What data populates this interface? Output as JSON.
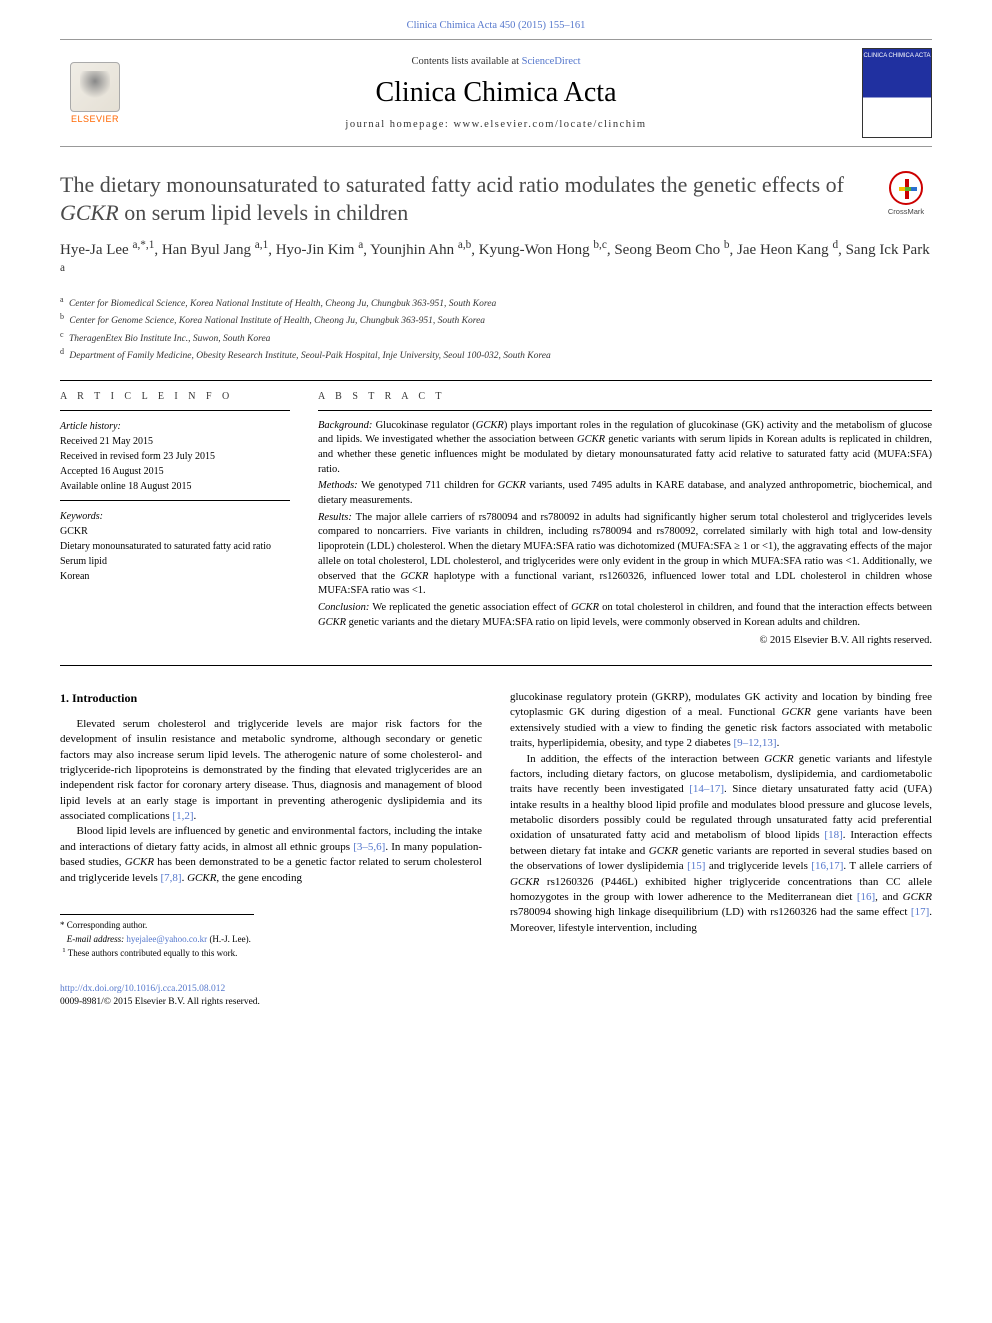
{
  "journal_ref": "Clinica Chimica Acta 450 (2015) 155–161",
  "banner": {
    "contents_pre": "Contents lists available at ",
    "contents_link": "ScienceDirect",
    "journal_title": "Clinica Chimica Acta",
    "homepage_label": "journal homepage: ",
    "homepage_url": "www.elsevier.com/locate/clinchim",
    "publisher": "ELSEVIER",
    "cover_text": "CLINICA CHIMICA ACTA"
  },
  "crossmark": "CrossMark",
  "title_pre": "The dietary monounsaturated to saturated fatty acid ratio modulates the genetic effects of ",
  "title_gene": "GCKR",
  "title_post": " on serum lipid levels in children",
  "authors_html": "Hye-Ja Lee <sup>a,*,1</sup>, Han Byul Jang <sup>a,1</sup>, Hyo-Jin Kim <sup>a</sup>, Younjhin Ahn <sup>a,b</sup>, Kyung-Won Hong <sup>b,c</sup>, Seong Beom Cho <sup>b</sup>, Jae Heon Kang <sup>d</sup>, Sang Ick Park <sup>a</sup>",
  "affiliations": [
    {
      "sup": "a",
      "text": "Center for Biomedical Science, Korea National Institute of Health, Cheong Ju, Chungbuk 363-951, South Korea"
    },
    {
      "sup": "b",
      "text": "Center for Genome Science, Korea National Institute of Health, Cheong Ju, Chungbuk 363-951, South Korea"
    },
    {
      "sup": "c",
      "text": "TheragenEtex Bio Institute Inc., Suwon, South Korea"
    },
    {
      "sup": "d",
      "text": "Department of Family Medicine, Obesity Research Institute, Seoul-Paik Hospital, Inje University, Seoul 100-032, South Korea"
    }
  ],
  "info": {
    "section_label": "A R T I C L E   I N F O",
    "history_label": "Article history:",
    "history": [
      "Received 21 May 2015",
      "Received in revised form 23 July 2015",
      "Accepted 16 August 2015",
      "Available online 18 August 2015"
    ],
    "keywords_label": "Keywords:",
    "keywords": [
      "GCKR",
      "Dietary monounsaturated to saturated fatty acid ratio",
      "Serum lipid",
      "Korean"
    ]
  },
  "abstract": {
    "section_label": "A B S T R A C T",
    "background": "Glucokinase regulator (<span class=\"gene\">GCKR</span>) plays important roles in the regulation of glucokinase (GK) activity and the metabolism of glucose and lipids. We investigated whether the association between <span class=\"gene\">GCKR</span> genetic variants with serum lipids in Korean adults is replicated in children, and whether these genetic influences might be modulated by dietary monounsaturated fatty acid relative to saturated fatty acid (MUFA:SFA) ratio.",
    "methods": "We genotyped 711 children for <span class=\"gene\">GCKR</span> variants, used 7495 adults in KARE database, and analyzed anthropometric, biochemical, and dietary measurements.",
    "results": "The major allele carriers of rs780094 and rs780092 in adults had significantly higher serum total cholesterol and triglycerides levels compared to noncarriers. Five variants in children, including rs780094 and rs780092, correlated similarly with high total and low-density lipoprotein (LDL) cholesterol. When the dietary MUFA:SFA ratio was dichotomized (MUFA:SFA ≥ 1 or <1), the aggravating effects of the major allele on total cholesterol, LDL cholesterol, and triglycerides were only evident in the group in which MUFA:SFA ratio was <1. Additionally, we observed that the <span class=\"gene\">GCKR</span> haplotype with a functional variant, rs1260326, influenced lower total and LDL cholesterol in children whose MUFA:SFA ratio was <1.",
    "conclusion": "We replicated the genetic association effect of <span class=\"gene\">GCKR</span> on total cholesterol in children, and found that the interaction effects between <span class=\"gene\">GCKR</span> genetic variants and the dietary MUFA:SFA ratio on lipid levels, were commonly observed in Korean adults and children.",
    "copyright": "© 2015 Elsevier B.V. All rights reserved."
  },
  "intro": {
    "heading": "1. Introduction",
    "p1": "Elevated serum cholesterol and triglyceride levels are major risk factors for the development of insulin resistance and metabolic syndrome, although secondary or genetic factors may also increase serum lipid levels. The atherogenic nature of some cholesterol- and triglyceride-rich lipoproteins is demonstrated by the finding that elevated triglycerides are an independent risk factor for coronary artery disease. Thus, diagnosis and management of blood lipid levels at an early stage is important in preventing atherogenic dyslipidemia and its associated complications <a class=\"ref\" href=\"#\">[1,2]</a>.",
    "p2": "Blood lipid levels are influenced by genetic and environmental factors, including the intake and interactions of dietary fatty acids, in almost all ethnic groups <a class=\"ref\" href=\"#\">[3–5,6]</a>. In many population-based studies, <span class=\"gene\">GCKR</span> has been demonstrated to be a genetic factor related to serum cholesterol and triglyceride levels <a class=\"ref\" href=\"#\">[7,8]</a>. <span class=\"gene\">GCKR</span>, the gene encoding",
    "p3": "glucokinase regulatory protein (GKRP), modulates GK activity and location by binding free cytoplasmic GK during digestion of a meal. Functional <span class=\"gene\">GCKR</span> gene variants have been extensively studied with a view to finding the genetic risk factors associated with metabolic traits, hyperlipidemia, obesity, and type 2 diabetes <a class=\"ref\" href=\"#\">[9–12,13]</a>.",
    "p4": "In addition, the effects of the interaction between <span class=\"gene\">GCKR</span> genetic variants and lifestyle factors, including dietary factors, on glucose metabolism, dyslipidemia, and cardiometabolic traits have recently been investigated <a class=\"ref\" href=\"#\">[14–17]</a>. Since dietary unsaturated fatty acid (UFA) intake results in a healthy blood lipid profile and modulates blood pressure and glucose levels, metabolic disorders possibly could be regulated through unsaturated fatty acid preferential oxidation of unsaturated fatty acid and metabolism of blood lipids <a class=\"ref\" href=\"#\">[18]</a>. Interaction effects between dietary fat intake and <span class=\"gene\">GCKR</span> genetic variants are reported in several studies based on the observations of lower dyslipidemia <a class=\"ref\" href=\"#\">[15]</a> and triglyceride levels <a class=\"ref\" href=\"#\">[16,17]</a>. T allele carriers of <span class=\"gene\">GCKR</span> rs1260326 (P446L) exhibited higher triglyceride concentrations than CC allele homozygotes in the group with lower adherence to the Mediterranean diet <a class=\"ref\" href=\"#\">[16]</a>, and <span class=\"gene\">GCKR</span> rs780094 showing high linkage disequilibrium (LD) with rs1260326 had the same effect <a class=\"ref\" href=\"#\">[17]</a>. Moreover, lifestyle intervention, including"
  },
  "footnotes": {
    "corr_label": "* Corresponding author.",
    "email_label": "E-mail address:",
    "email": "hyejalee@yahoo.co.kr",
    "email_who": "(H.-J. Lee).",
    "contrib": "These authors contributed equally to this work."
  },
  "footer": {
    "doi": "http://dx.doi.org/10.1016/j.cca.2015.08.012",
    "issn": "0009-8981/© 2015 Elsevier B.V. All rights reserved."
  },
  "colors": {
    "link": "#5577cc",
    "elsevier_orange": "#ff6600",
    "title_grey": "#4a4a4a"
  }
}
